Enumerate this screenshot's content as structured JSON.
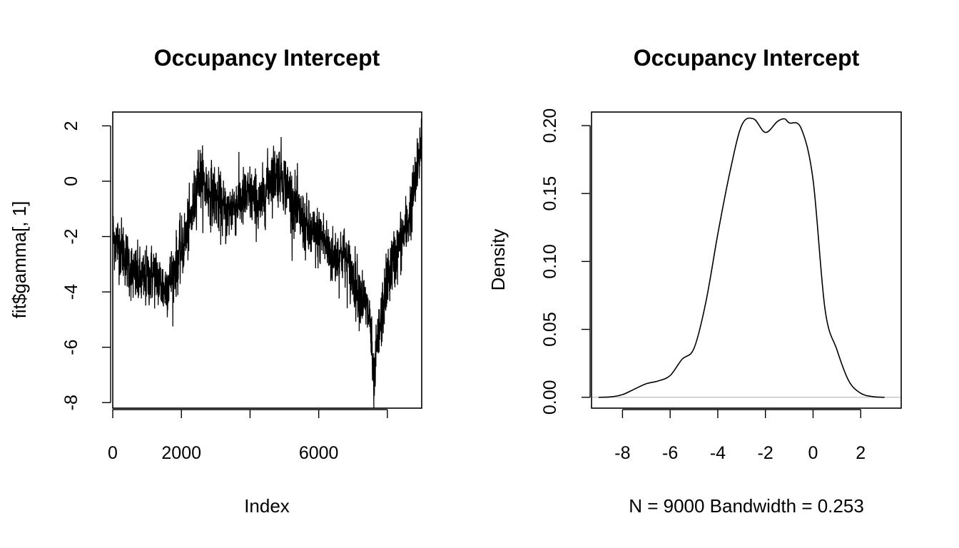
{
  "chart_data": [
    {
      "type": "line",
      "title": "Occupancy Intercept",
      "xlabel": "Index",
      "ylabel": "fit$gamma[, 1]",
      "xlim": [
        0,
        9000
      ],
      "ylim": [
        -8.2,
        2.5
      ],
      "x_ticks": [
        0,
        2000,
        4000,
        6000,
        8000
      ],
      "x_tick_labels": [
        "0",
        "2000",
        "",
        "6000",
        ""
      ],
      "y_ticks": [
        -8,
        -6,
        -4,
        -2,
        0,
        2
      ],
      "y_tick_labels": [
        "-8",
        "-6",
        "-4",
        "-2",
        "0",
        "2"
      ],
      "grid": false,
      "series": [
        {
          "trend_x": [
            0,
            300,
            600,
            900,
            1200,
            1500,
            1700,
            2000,
            2300,
            2500,
            2700,
            3000,
            3300,
            3600,
            4000,
            4300,
            4600,
            4900,
            5200,
            5500,
            5800,
            6100,
            6400,
            6700,
            7000,
            7300,
            7500,
            7600,
            7700,
            8000,
            8300,
            8600,
            8900,
            9000
          ],
          "trend_y": [
            -2.0,
            -2.5,
            -3.4,
            -3.6,
            -3.3,
            -3.9,
            -3.5,
            -2.5,
            -1.3,
            0.3,
            -0.2,
            -0.6,
            -1.2,
            -0.8,
            -0.5,
            -0.9,
            0.2,
            0.3,
            -0.6,
            -1.4,
            -2.0,
            -2.0,
            -2.8,
            -2.6,
            -3.5,
            -4.3,
            -5.0,
            -7.6,
            -6.0,
            -3.5,
            -2.5,
            -1.5,
            0.5,
            1.8
          ],
          "noise_sd": 0.55,
          "n_points": 9000,
          "color": "#000000"
        }
      ]
    },
    {
      "type": "line",
      "title": "Occupancy Intercept",
      "xlabel": "N = 9000   Bandwidth = 0.253",
      "ylabel": "Density",
      "xlim": [
        -9.3,
        3.7
      ],
      "ylim": [
        -0.008,
        0.21
      ],
      "x_ticks": [
        -8,
        -6,
        -4,
        -2,
        0,
        2
      ],
      "x_tick_labels": [
        "-8",
        "-6",
        "-4",
        "-2",
        "0",
        "2"
      ],
      "y_ticks": [
        0.0,
        0.05,
        0.1,
        0.15,
        0.2
      ],
      "y_tick_labels": [
        "0.00",
        "0.05",
        "0.10",
        "0.15",
        "0.20"
      ],
      "baseline": 0,
      "baseline_color": "#bebebe",
      "grid": false,
      "series": [
        {
          "x": [
            -9.0,
            -8.5,
            -8.0,
            -7.5,
            -7.0,
            -6.5,
            -6.0,
            -5.5,
            -5.0,
            -4.5,
            -4.0,
            -3.5,
            -3.0,
            -2.5,
            -2.0,
            -1.5,
            -1.2,
            -1.0,
            -0.5,
            0.0,
            0.5,
            1.0,
            1.5,
            2.0,
            2.5,
            3.0
          ],
          "y": [
            0.0,
            0.0003,
            0.002,
            0.006,
            0.01,
            0.012,
            0.016,
            0.028,
            0.036,
            0.07,
            0.12,
            0.165,
            0.2,
            0.205,
            0.195,
            0.203,
            0.205,
            0.202,
            0.198,
            0.16,
            0.065,
            0.035,
            0.012,
            0.003,
            0.0005,
            0.0
          ],
          "color": "#000000"
        }
      ]
    }
  ]
}
